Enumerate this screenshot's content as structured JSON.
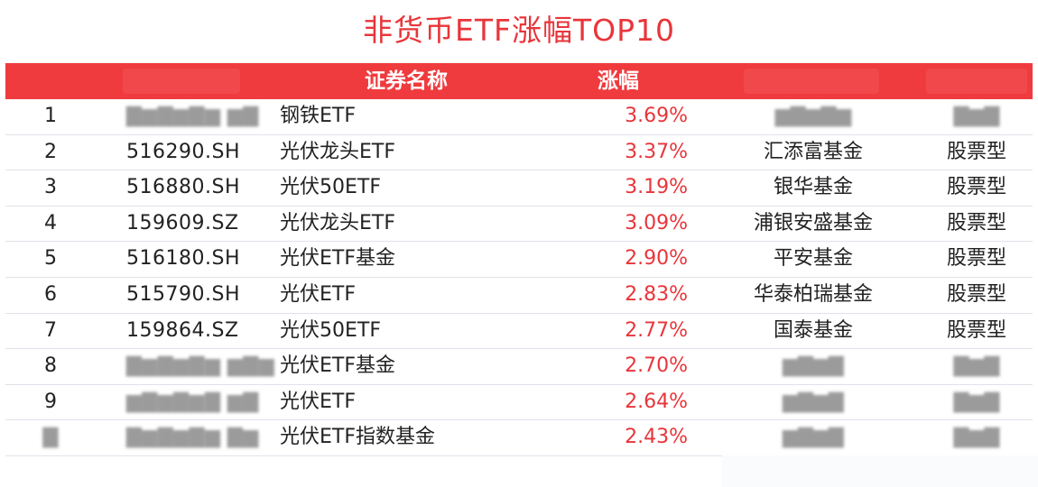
{
  "title": "非货币ETF涨幅TOP10",
  "header": {
    "name_label": "证券名称",
    "change_label": "涨幅"
  },
  "rows": [
    {
      "rank": "1",
      "code": "",
      "name": "钢铁ETF",
      "change": "3.69%",
      "company": "",
      "type": ""
    },
    {
      "rank": "2",
      "code": "516290.SH",
      "name": "光伏龙头ETF",
      "change": "3.37%",
      "company": "汇添富基金",
      "type": "股票型"
    },
    {
      "rank": "3",
      "code": "516880.SH",
      "name": "光伏50ETF",
      "change": "3.19%",
      "company": "银华基金",
      "type": "股票型"
    },
    {
      "rank": "4",
      "code": "159609.SZ",
      "name": "光伏龙头ETF",
      "change": "3.09%",
      "company": "浦银安盛基金",
      "type": "股票型"
    },
    {
      "rank": "5",
      "code": "516180.SH",
      "name": "光伏ETF基金",
      "change": "2.90%",
      "company": "平安基金",
      "type": "股票型"
    },
    {
      "rank": "6",
      "code": "515790.SH",
      "name": "光伏ETF",
      "change": "2.83%",
      "company": "华泰柏瑞基金",
      "type": "股票型"
    },
    {
      "rank": "7",
      "code": "159864.SZ",
      "name": "光伏50ETF",
      "change": "2.77%",
      "company": "国泰基金",
      "type": "股票型"
    },
    {
      "rank": "8",
      "code": "",
      "name": "光伏ETF基金",
      "change": "2.70%",
      "company": "",
      "type": ""
    },
    {
      "rank": "9",
      "code": "",
      "name": "光伏ETF",
      "change": "2.64%",
      "company": "",
      "type": ""
    },
    {
      "rank": "",
      "code": "",
      "name": "光伏ETF指数基金",
      "change": "2.43%",
      "company": "",
      "type": ""
    }
  ],
  "colors": {
    "accent": "#e8353a",
    "header_bg": "#ef3b3e",
    "row_border": "#dfe3ea"
  }
}
